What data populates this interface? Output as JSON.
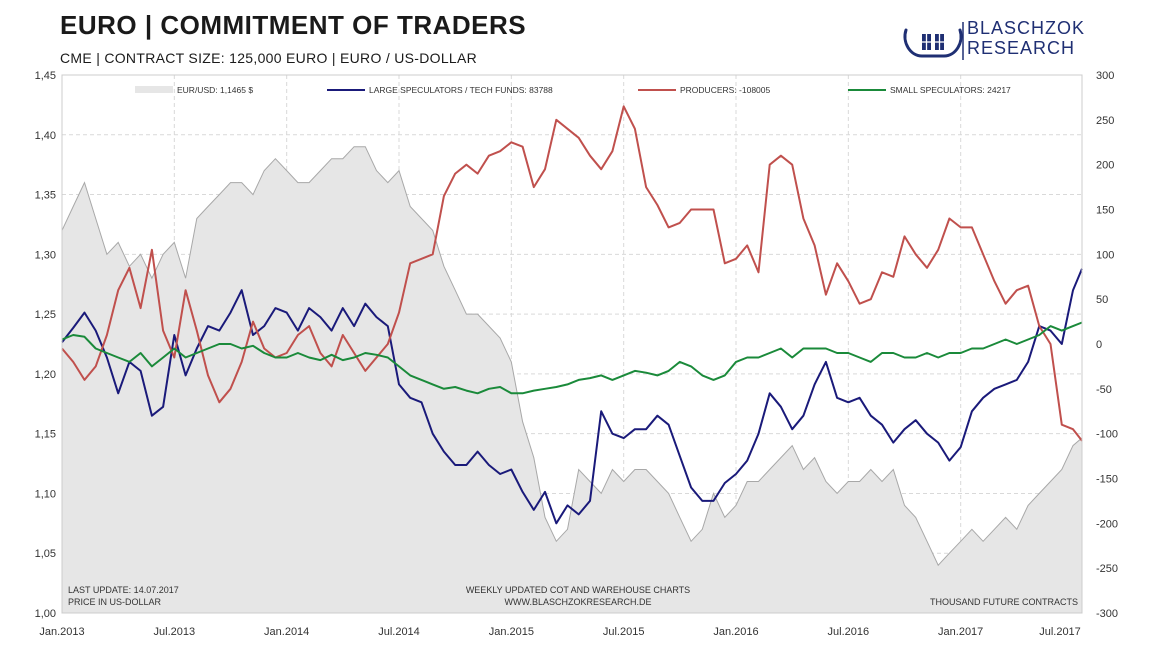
{
  "header": {
    "title": "EURO  | COMMITMENT OF TRADERS",
    "subtitle": "CME   |  CONTRACT SIZE: 125,000 EURO   |  EURO / US-DOLLAR"
  },
  "logo": {
    "line1": "BLASCHZOK",
    "line2": "RESEARCH",
    "icon": "viking-ships-icon",
    "color": "#1f2f73"
  },
  "footer": {
    "last_update": "LAST UPDATE: 14.07.2017",
    "price_unit": "PRICE IN US-DOLLAR",
    "center_line1": "WEEKLY  UPDATED  COT  AND  WAREHOUSE  CHARTS",
    "center_line2": "WWW.BLASCHZOKRESEARCH.DE",
    "right_unit": "THOUSAND  FUTURE CONTRACTS"
  },
  "chart_data": {
    "type": "line",
    "x_ticks": [
      "Jan.2013",
      "Jul.2013",
      "Jan.2014",
      "Jul.2014",
      "Jan.2015",
      "Jul.2015",
      "Jan.2016",
      "Jul.2016",
      "Jan.2017",
      "Jul.2017"
    ],
    "x_range": [
      "2013-01",
      "2017-07"
    ],
    "left_axis": {
      "ticks": [
        "1,45",
        "1,40",
        "1,35",
        "1,30",
        "1,25",
        "1,20",
        "1,15",
        "1,10",
        "1,05",
        "1,00"
      ],
      "ylim": [
        1.0,
        1.45
      ]
    },
    "right_axis": {
      "ticks": [
        "300",
        "250",
        "200",
        "150",
        "100",
        "50",
        "0",
        "-50",
        "-100",
        "-150",
        "-200",
        "-250",
        "-300"
      ],
      "ylim": [
        -300,
        300
      ]
    },
    "grid": true,
    "legend_position": "top",
    "series": [
      {
        "name": "EUR/USD: 1,1465 $",
        "kind": "area",
        "axis": "left",
        "color": "#e6e6e6",
        "line_color": "#a8a8a8",
        "x": [
          2013.0,
          2013.05,
          2013.1,
          2013.15,
          2013.2,
          2013.25,
          2013.3,
          2013.35,
          2013.4,
          2013.45,
          2013.5,
          2013.55,
          2013.6,
          2013.65,
          2013.7,
          2013.75,
          2013.8,
          2013.85,
          2013.9,
          2013.95,
          2014.0,
          2014.05,
          2014.1,
          2014.15,
          2014.2,
          2014.25,
          2014.3,
          2014.35,
          2014.4,
          2014.45,
          2014.5,
          2014.55,
          2014.6,
          2014.65,
          2014.7,
          2014.75,
          2014.8,
          2014.85,
          2014.9,
          2014.95,
          2015.0,
          2015.05,
          2015.1,
          2015.15,
          2015.2,
          2015.25,
          2015.3,
          2015.35,
          2015.4,
          2015.45,
          2015.5,
          2015.55,
          2015.6,
          2015.65,
          2015.7,
          2015.75,
          2015.8,
          2015.85,
          2015.9,
          2015.95,
          2016.0,
          2016.05,
          2016.1,
          2016.15,
          2016.2,
          2016.25,
          2016.3,
          2016.35,
          2016.4,
          2016.45,
          2016.5,
          2016.55,
          2016.6,
          2016.65,
          2016.7,
          2016.75,
          2016.8,
          2016.85,
          2016.9,
          2016.95,
          2017.0,
          2017.05,
          2017.1,
          2017.15,
          2017.2,
          2017.25,
          2017.3,
          2017.35,
          2017.4,
          2017.45,
          2017.5,
          2017.54
        ],
        "values": [
          1.32,
          1.34,
          1.36,
          1.33,
          1.3,
          1.31,
          1.29,
          1.3,
          1.28,
          1.3,
          1.31,
          1.28,
          1.33,
          1.34,
          1.35,
          1.36,
          1.36,
          1.35,
          1.37,
          1.38,
          1.37,
          1.36,
          1.36,
          1.37,
          1.38,
          1.38,
          1.39,
          1.39,
          1.37,
          1.36,
          1.37,
          1.34,
          1.33,
          1.32,
          1.29,
          1.27,
          1.25,
          1.25,
          1.24,
          1.23,
          1.21,
          1.16,
          1.13,
          1.08,
          1.06,
          1.07,
          1.12,
          1.11,
          1.1,
          1.12,
          1.11,
          1.12,
          1.12,
          1.11,
          1.1,
          1.08,
          1.06,
          1.07,
          1.1,
          1.08,
          1.09,
          1.11,
          1.11,
          1.12,
          1.13,
          1.14,
          1.12,
          1.13,
          1.11,
          1.1,
          1.11,
          1.11,
          1.12,
          1.11,
          1.12,
          1.09,
          1.08,
          1.06,
          1.04,
          1.05,
          1.06,
          1.07,
          1.06,
          1.07,
          1.08,
          1.07,
          1.09,
          1.1,
          1.11,
          1.12,
          1.14,
          1.1465
        ]
      },
      {
        "name": "LARGE SPECULATORS / TECH FUNDS:  83788",
        "kind": "line",
        "axis": "right",
        "color": "#1a1a7a",
        "x": [
          2013.0,
          2013.05,
          2013.1,
          2013.15,
          2013.2,
          2013.25,
          2013.3,
          2013.35,
          2013.4,
          2013.45,
          2013.5,
          2013.55,
          2013.6,
          2013.65,
          2013.7,
          2013.75,
          2013.8,
          2013.85,
          2013.9,
          2013.95,
          2014.0,
          2014.05,
          2014.1,
          2014.15,
          2014.2,
          2014.25,
          2014.3,
          2014.35,
          2014.4,
          2014.45,
          2014.5,
          2014.55,
          2014.6,
          2014.65,
          2014.7,
          2014.75,
          2014.8,
          2014.85,
          2014.9,
          2014.95,
          2015.0,
          2015.05,
          2015.1,
          2015.15,
          2015.2,
          2015.25,
          2015.3,
          2015.35,
          2015.4,
          2015.45,
          2015.5,
          2015.55,
          2015.6,
          2015.65,
          2015.7,
          2015.75,
          2015.8,
          2015.85,
          2015.9,
          2015.95,
          2016.0,
          2016.05,
          2016.1,
          2016.15,
          2016.2,
          2016.25,
          2016.3,
          2016.35,
          2016.4,
          2016.45,
          2016.5,
          2016.55,
          2016.6,
          2016.65,
          2016.7,
          2016.75,
          2016.8,
          2016.85,
          2016.9,
          2016.95,
          2017.0,
          2017.05,
          2017.1,
          2017.15,
          2017.2,
          2017.25,
          2017.3,
          2017.35,
          2017.4,
          2017.45,
          2017.5,
          2017.54
        ],
        "values": [
          2,
          18,
          35,
          15,
          -15,
          -55,
          -20,
          -30,
          -80,
          -70,
          10,
          -35,
          -5,
          20,
          15,
          35,
          60,
          10,
          20,
          40,
          35,
          15,
          40,
          30,
          15,
          40,
          20,
          45,
          30,
          20,
          -45,
          -60,
          -65,
          -100,
          -120,
          -135,
          -135,
          -120,
          -135,
          -145,
          -140,
          -165,
          -185,
          -165,
          -200,
          -180,
          -190,
          -175,
          -75,
          -100,
          -105,
          -95,
          -95,
          -80,
          -90,
          -125,
          -160,
          -175,
          -175,
          -155,
          -145,
          -130,
          -100,
          -55,
          -70,
          -95,
          -80,
          -45,
          -20,
          -60,
          -65,
          -60,
          -80,
          -90,
          -110,
          -95,
          -85,
          -100,
          -110,
          -130,
          -115,
          -75,
          -60,
          -50,
          -45,
          -40,
          -20,
          20,
          15,
          0,
          60,
          84
        ]
      },
      {
        "name": "PRODUCERS: -108005",
        "kind": "line",
        "axis": "right",
        "color": "#c0504d",
        "x": [
          2013.0,
          2013.05,
          2013.1,
          2013.15,
          2013.2,
          2013.25,
          2013.3,
          2013.35,
          2013.4,
          2013.45,
          2013.5,
          2013.55,
          2013.6,
          2013.65,
          2013.7,
          2013.75,
          2013.8,
          2013.85,
          2013.9,
          2013.95,
          2014.0,
          2014.05,
          2014.1,
          2014.15,
          2014.2,
          2014.25,
          2014.3,
          2014.35,
          2014.4,
          2014.45,
          2014.5,
          2014.55,
          2014.6,
          2014.65,
          2014.7,
          2014.75,
          2014.8,
          2014.85,
          2014.9,
          2014.95,
          2015.0,
          2015.05,
          2015.1,
          2015.15,
          2015.2,
          2015.25,
          2015.3,
          2015.35,
          2015.4,
          2015.45,
          2015.5,
          2015.55,
          2015.6,
          2015.65,
          2015.7,
          2015.75,
          2015.8,
          2015.85,
          2015.9,
          2015.95,
          2016.0,
          2016.05,
          2016.1,
          2016.15,
          2016.2,
          2016.25,
          2016.3,
          2016.35,
          2016.4,
          2016.45,
          2016.5,
          2016.55,
          2016.6,
          2016.65,
          2016.7,
          2016.75,
          2016.8,
          2016.85,
          2016.9,
          2016.95,
          2017.0,
          2017.05,
          2017.1,
          2017.15,
          2017.2,
          2017.25,
          2017.3,
          2017.35,
          2017.4,
          2017.45,
          2017.5,
          2017.54
        ],
        "values": [
          -5,
          -20,
          -40,
          -25,
          10,
          60,
          85,
          40,
          105,
          15,
          -15,
          60,
          15,
          -35,
          -65,
          -50,
          -20,
          25,
          -5,
          -15,
          -10,
          10,
          20,
          -10,
          -25,
          10,
          -10,
          -30,
          -15,
          0,
          35,
          90,
          95,
          100,
          165,
          190,
          200,
          190,
          210,
          215,
          225,
          220,
          175,
          195,
          250,
          240,
          230,
          210,
          195,
          215,
          265,
          240,
          175,
          155,
          130,
          135,
          150,
          150,
          150,
          90,
          95,
          110,
          80,
          200,
          210,
          200,
          140,
          110,
          55,
          90,
          70,
          45,
          50,
          80,
          75,
          120,
          100,
          85,
          105,
          140,
          130,
          130,
          100,
          70,
          45,
          60,
          65,
          20,
          0,
          -90,
          -95,
          -108
        ]
      },
      {
        "name": "SMALL SPECULATORS: 24217",
        "kind": "line",
        "axis": "right",
        "color": "#1a8a3a",
        "x": [
          2013.0,
          2013.05,
          2013.1,
          2013.15,
          2013.2,
          2013.25,
          2013.3,
          2013.35,
          2013.4,
          2013.45,
          2013.5,
          2013.55,
          2013.6,
          2013.65,
          2013.7,
          2013.75,
          2013.8,
          2013.85,
          2013.9,
          2013.95,
          2014.0,
          2014.05,
          2014.1,
          2014.15,
          2014.2,
          2014.25,
          2014.3,
          2014.35,
          2014.4,
          2014.45,
          2014.5,
          2014.55,
          2014.6,
          2014.65,
          2014.7,
          2014.75,
          2014.8,
          2014.85,
          2014.9,
          2014.95,
          2015.0,
          2015.05,
          2015.1,
          2015.15,
          2015.2,
          2015.25,
          2015.3,
          2015.35,
          2015.4,
          2015.45,
          2015.5,
          2015.55,
          2015.6,
          2015.65,
          2015.7,
          2015.75,
          2015.8,
          2015.85,
          2015.9,
          2015.95,
          2016.0,
          2016.05,
          2016.1,
          2016.15,
          2016.2,
          2016.25,
          2016.3,
          2016.35,
          2016.4,
          2016.45,
          2016.5,
          2016.55,
          2016.6,
          2016.65,
          2016.7,
          2016.75,
          2016.8,
          2016.85,
          2016.9,
          2016.95,
          2017.0,
          2017.05,
          2017.1,
          2017.15,
          2017.2,
          2017.25,
          2017.3,
          2017.35,
          2017.4,
          2017.45,
          2017.5,
          2017.54
        ],
        "values": [
          5,
          10,
          8,
          -5,
          -10,
          -15,
          -20,
          -10,
          -25,
          -15,
          -5,
          -15,
          -10,
          -5,
          0,
          0,
          -5,
          -2,
          -10,
          -15,
          -15,
          -10,
          -15,
          -18,
          -12,
          -18,
          -15,
          -10,
          -12,
          -15,
          -25,
          -35,
          -40,
          -45,
          -50,
          -48,
          -52,
          -55,
          -50,
          -48,
          -55,
          -55,
          -52,
          -50,
          -48,
          -45,
          -40,
          -38,
          -35,
          -40,
          -35,
          -30,
          -32,
          -35,
          -30,
          -20,
          -25,
          -35,
          -40,
          -35,
          -20,
          -15,
          -15,
          -10,
          -5,
          -15,
          -5,
          -5,
          -5,
          -10,
          -10,
          -15,
          -20,
          -10,
          -10,
          -15,
          -15,
          -10,
          -15,
          -10,
          -10,
          -5,
          -5,
          0,
          5,
          0,
          5,
          10,
          20,
          15,
          20,
          24
        ]
      }
    ]
  }
}
